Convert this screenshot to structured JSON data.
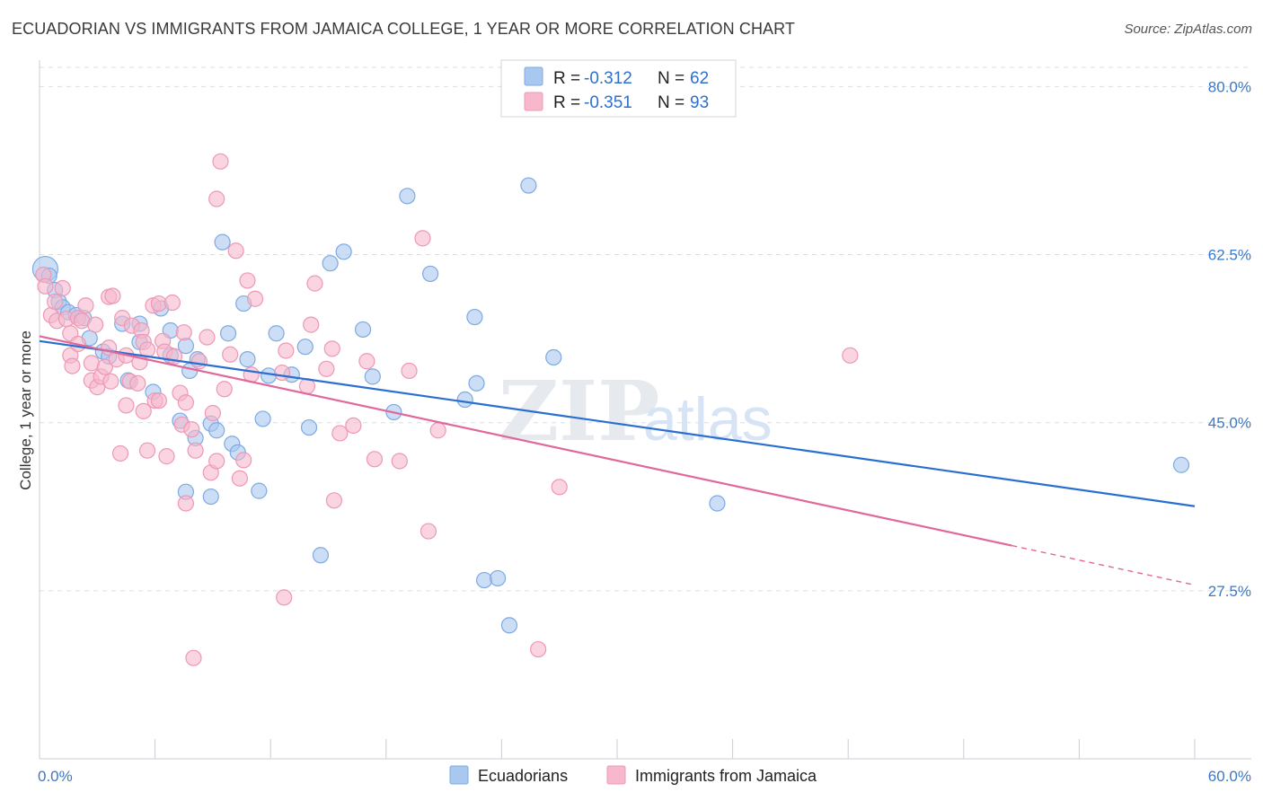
{
  "header": {
    "title": "ECUADORIAN VS IMMIGRANTS FROM JAMAICA COLLEGE, 1 YEAR OR MORE CORRELATION CHART",
    "source": "Source: ZipAtlas.com"
  },
  "watermark": {
    "part1": "ZIP",
    "part2": "atlas"
  },
  "colors": {
    "blue_fill": "#a9c8f0",
    "blue_stroke": "#7fa9e0",
    "blue_line": "#2a6fd0",
    "pink_fill": "#f7b8cc",
    "pink_stroke": "#ee98b4",
    "pink_line": "#e0689a",
    "grid": "#d9dde3",
    "tick_text": "#3a78c9"
  },
  "chart_data": {
    "type": "scatter",
    "title": "ECUADORIAN VS IMMIGRANTS FROM JAMAICA COLLEGE, 1 YEAR OR MORE CORRELATION CHART",
    "ylabel": "College, 1 year or more",
    "xlim": [
      0,
      60
    ],
    "ylim": [
      10,
      82
    ],
    "x_tick_labels": [
      {
        "value": 0,
        "label": "0.0%"
      },
      {
        "value": 60,
        "label": "60.0%"
      }
    ],
    "y_tick_labels": [
      {
        "value": 80,
        "label": "80.0%"
      },
      {
        "value": 62.5,
        "label": "62.5%"
      },
      {
        "value": 45,
        "label": "45.0%"
      },
      {
        "value": 27.5,
        "label": "27.5%"
      }
    ],
    "legend_stats": [
      {
        "r_label": "R =",
        "r": "-0.312",
        "n_label": "N =",
        "n": "62"
      },
      {
        "r_label": "R =",
        "r": "-0.351",
        "n_label": "N =",
        "n": "93"
      }
    ],
    "series": [
      {
        "name": "Ecuadorians",
        "color": "#a9c8f0",
        "trend": {
          "x0": 0,
          "y0": 53.5,
          "x1": 60,
          "y1": 36.3
        },
        "points": [
          [
            0.3,
            61.0
          ],
          [
            0.5,
            60.3
          ],
          [
            0.8,
            58.8
          ],
          [
            1.0,
            57.6
          ],
          [
            1.2,
            57.0
          ],
          [
            1.5,
            56.5
          ],
          [
            1.9,
            56.2
          ],
          [
            2.3,
            55.9
          ],
          [
            2.6,
            53.8
          ],
          [
            3.3,
            52.4
          ],
          [
            3.6,
            51.9
          ],
          [
            4.3,
            55.3
          ],
          [
            4.6,
            49.4
          ],
          [
            5.2,
            53.4
          ],
          [
            5.2,
            55.3
          ],
          [
            5.9,
            48.2
          ],
          [
            6.3,
            56.9
          ],
          [
            6.8,
            52.0
          ],
          [
            6.8,
            54.6
          ],
          [
            7.3,
            45.2
          ],
          [
            7.6,
            53.0
          ],
          [
            7.6,
            37.8
          ],
          [
            7.8,
            50.4
          ],
          [
            8.2,
            51.6
          ],
          [
            8.1,
            43.4
          ],
          [
            8.9,
            44.9
          ],
          [
            8.9,
            37.3
          ],
          [
            9.2,
            44.2
          ],
          [
            9.5,
            63.8
          ],
          [
            9.8,
            54.3
          ],
          [
            10.0,
            42.8
          ],
          [
            10.3,
            41.9
          ],
          [
            10.6,
            57.4
          ],
          [
            10.8,
            51.6
          ],
          [
            11.4,
            37.9
          ],
          [
            11.6,
            45.4
          ],
          [
            11.9,
            49.9
          ],
          [
            12.3,
            54.3
          ],
          [
            13.1,
            50.0
          ],
          [
            13.8,
            52.9
          ],
          [
            14.0,
            44.5
          ],
          [
            14.6,
            31.2
          ],
          [
            15.1,
            61.6
          ],
          [
            15.8,
            62.8
          ],
          [
            16.8,
            54.7
          ],
          [
            17.3,
            49.8
          ],
          [
            18.4,
            46.1
          ],
          [
            19.1,
            68.6
          ],
          [
            20.3,
            60.5
          ],
          [
            22.1,
            47.4
          ],
          [
            22.7,
            49.1
          ],
          [
            22.6,
            56.0
          ],
          [
            23.1,
            28.6
          ],
          [
            23.8,
            28.8
          ],
          [
            24.4,
            23.9
          ],
          [
            25.4,
            69.7
          ],
          [
            26.7,
            51.8
          ],
          [
            35.2,
            36.6
          ],
          [
            59.3,
            40.6
          ]
        ]
      },
      {
        "name": "Immigrants from Jamaica",
        "color": "#f7b8cc",
        "trend": {
          "x0": 0,
          "y0": 54.0,
          "x1": 50.5,
          "y1": 32.2,
          "dash_to_x": 60,
          "dash_to_y": 28.1
        },
        "points": [
          [
            0.2,
            60.4
          ],
          [
            0.3,
            59.2
          ],
          [
            0.6,
            56.2
          ],
          [
            0.8,
            57.6
          ],
          [
            0.9,
            55.6
          ],
          [
            1.2,
            59.0
          ],
          [
            1.4,
            55.8
          ],
          [
            1.6,
            54.3
          ],
          [
            1.6,
            52.0
          ],
          [
            1.7,
            50.9
          ],
          [
            2.0,
            55.9
          ],
          [
            2.0,
            53.2
          ],
          [
            2.2,
            55.6
          ],
          [
            2.4,
            57.2
          ],
          [
            2.7,
            49.4
          ],
          [
            2.7,
            51.2
          ],
          [
            2.9,
            55.2
          ],
          [
            3.0,
            48.7
          ],
          [
            3.2,
            49.8
          ],
          [
            3.4,
            50.8
          ],
          [
            3.6,
            58.1
          ],
          [
            3.6,
            52.8
          ],
          [
            3.7,
            49.3
          ],
          [
            3.8,
            58.2
          ],
          [
            4.0,
            51.6
          ],
          [
            4.2,
            41.8
          ],
          [
            4.3,
            55.9
          ],
          [
            4.5,
            46.8
          ],
          [
            4.5,
            52.0
          ],
          [
            4.7,
            49.3
          ],
          [
            4.8,
            55.1
          ],
          [
            5.1,
            49.1
          ],
          [
            5.2,
            51.3
          ],
          [
            5.3,
            54.6
          ],
          [
            5.4,
            53.4
          ],
          [
            5.4,
            46.2
          ],
          [
            5.6,
            52.6
          ],
          [
            5.6,
            42.1
          ],
          [
            5.9,
            57.2
          ],
          [
            6.0,
            47.3
          ],
          [
            6.2,
            47.3
          ],
          [
            6.2,
            57.4
          ],
          [
            6.4,
            53.5
          ],
          [
            6.5,
            52.4
          ],
          [
            6.6,
            41.5
          ],
          [
            6.9,
            57.5
          ],
          [
            7.0,
            51.9
          ],
          [
            7.3,
            48.1
          ],
          [
            7.4,
            44.8
          ],
          [
            7.5,
            54.4
          ],
          [
            7.6,
            36.6
          ],
          [
            7.6,
            47.1
          ],
          [
            7.9,
            44.3
          ],
          [
            8.0,
            20.5
          ],
          [
            8.1,
            42.1
          ],
          [
            8.3,
            51.4
          ],
          [
            8.7,
            53.9
          ],
          [
            8.9,
            39.8
          ],
          [
            9.0,
            46.0
          ],
          [
            9.2,
            41.0
          ],
          [
            9.2,
            68.3
          ],
          [
            9.4,
            72.2
          ],
          [
            9.6,
            48.5
          ],
          [
            9.9,
            52.1
          ],
          [
            10.2,
            62.9
          ],
          [
            10.4,
            39.2
          ],
          [
            10.6,
            41.1
          ],
          [
            10.8,
            59.8
          ],
          [
            11.0,
            50.0
          ],
          [
            11.2,
            57.9
          ],
          [
            12.6,
            50.2
          ],
          [
            12.7,
            26.8
          ],
          [
            12.8,
            52.5
          ],
          [
            13.9,
            48.8
          ],
          [
            14.1,
            55.2
          ],
          [
            14.3,
            59.5
          ],
          [
            14.9,
            50.6
          ],
          [
            15.2,
            52.7
          ],
          [
            15.3,
            36.9
          ],
          [
            15.6,
            43.9
          ],
          [
            16.3,
            44.7
          ],
          [
            17.0,
            51.4
          ],
          [
            17.4,
            41.2
          ],
          [
            18.7,
            41.0
          ],
          [
            19.2,
            50.4
          ],
          [
            19.9,
            64.2
          ],
          [
            20.2,
            33.7
          ],
          [
            20.7,
            44.2
          ],
          [
            25.9,
            21.4
          ],
          [
            27.0,
            38.3
          ],
          [
            42.1,
            52.0
          ]
        ]
      }
    ]
  },
  "bottom_legend": [
    {
      "label": "Ecuadorians"
    },
    {
      "label": "Immigrants from Jamaica"
    }
  ]
}
